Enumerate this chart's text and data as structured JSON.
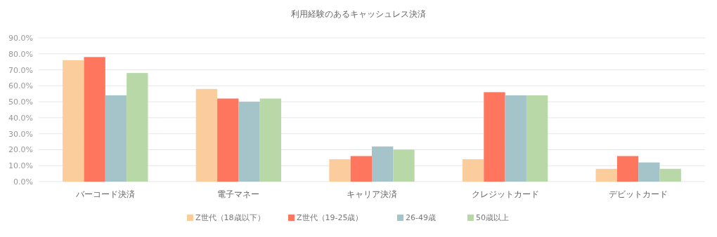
{
  "chart_data": {
    "type": "bar",
    "title": "利用経験のあるキャッシュレス決済",
    "categories": [
      "バーコード決済",
      "電子マネー",
      "キャリア決済",
      "クレジットカード",
      "デビットカード"
    ],
    "series": [
      {
        "name": "Z世代（18歳以下）",
        "color": "#fbcd9c",
        "values": [
          76,
          58,
          14,
          14,
          8
        ]
      },
      {
        "name": "Z世代（19-25歳）",
        "color": "#fe765e",
        "values": [
          78,
          52,
          16,
          56,
          16
        ]
      },
      {
        "name": "26-49歳",
        "color": "#a5c4c9",
        "values": [
          54,
          50,
          22,
          54,
          12
        ]
      },
      {
        "name": "50歳以上",
        "color": "#b8d8a8",
        "values": [
          68,
          52,
          20,
          54,
          8
        ]
      }
    ],
    "ylim": [
      0,
      90
    ],
    "yticks": [
      {
        "value": 0,
        "label": "0.0%"
      },
      {
        "value": 10,
        "label": "10.0%"
      },
      {
        "value": 20,
        "label": "20.0%"
      },
      {
        "value": 30,
        "label": "30.0%"
      },
      {
        "value": 40,
        "label": "40.0%"
      },
      {
        "value": 50,
        "label": "50.0%"
      },
      {
        "value": 60,
        "label": "60.0%"
      },
      {
        "value": 70,
        "label": "70.0%"
      },
      {
        "value": 80,
        "label": "80.0%"
      },
      {
        "value": 90,
        "label": "90.0%"
      }
    ],
    "grid": "y",
    "legend": "bottom"
  }
}
